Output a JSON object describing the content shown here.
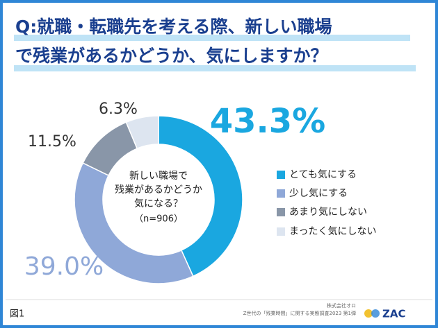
{
  "chart_data": {
    "type": "donut",
    "title": [
      "Q:就職・転職先を考える際、新しい職場",
      "で残業があるかどうか、気にしますか？"
    ],
    "center_label": [
      "新しい職場で",
      "残業があるかどうか",
      "気になる？",
      "（n=906）"
    ],
    "categories": [
      "とても気にする",
      "少し気にする",
      "あまり気にしない",
      "まったく気にしない"
    ],
    "values": [
      43.3,
      39.0,
      11.5,
      6.3
    ],
    "value_labels": [
      "43.3%",
      "39.0%",
      "11.5%",
      "6.3%"
    ],
    "colors": [
      "#1aa7e0",
      "#8fa8d8",
      "#8996a8",
      "#dde5f0"
    ],
    "legend": "right"
  },
  "footer": {
    "figure": "図1",
    "company": "株式会社オロ",
    "source": "Z世代の「残業時間」に関する実態調査2023 第1弾",
    "logo": "ZAC"
  }
}
